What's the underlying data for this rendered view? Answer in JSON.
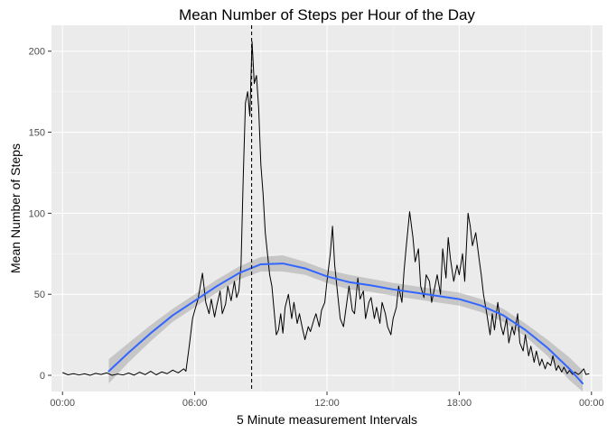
{
  "chart_data": {
    "type": "line",
    "title": "Mean Number of Steps per Hour of the Day",
    "xlabel": "5 Minute measurement Intervals",
    "ylabel": "Mean Number of Steps",
    "xlim_hours": [
      -0.5,
      24.5
    ],
    "ylim": [
      -10,
      216
    ],
    "x_ticks": [
      {
        "value": 0,
        "label": "00:00"
      },
      {
        "value": 6,
        "label": "06:00"
      },
      {
        "value": 12,
        "label": "12:00"
      },
      {
        "value": 18,
        "label": "18:00"
      },
      {
        "value": 24,
        "label": "00:00"
      }
    ],
    "y_ticks": [
      {
        "value": 0,
        "label": "0"
      },
      {
        "value": 50,
        "label": "50"
      },
      {
        "value": 100,
        "label": "100"
      },
      {
        "value": 150,
        "label": "150"
      },
      {
        "value": 200,
        "label": "200"
      }
    ],
    "grid": true,
    "vline": {
      "x": 8.58,
      "style": "dashed"
    },
    "series": [
      {
        "style": "line",
        "color": "#000000",
        "points": [
          [
            0,
            1.7
          ],
          [
            0.25,
            0.3
          ],
          [
            0.5,
            1.0
          ],
          [
            0.75,
            0.2
          ],
          [
            1,
            0.9
          ],
          [
            1.25,
            0.0
          ],
          [
            1.5,
            1.2
          ],
          [
            1.75,
            0.5
          ],
          [
            2,
            1.5
          ],
          [
            2.25,
            0.0
          ],
          [
            2.5,
            0.8
          ],
          [
            2.75,
            0.2
          ],
          [
            3,
            1.4
          ],
          [
            3.25,
            0.1
          ],
          [
            3.5,
            1.9
          ],
          [
            3.75,
            0.4
          ],
          [
            4,
            2.5
          ],
          [
            4.25,
            0.3
          ],
          [
            4.5,
            2.1
          ],
          [
            4.75,
            1.0
          ],
          [
            5,
            3.2
          ],
          [
            5.25,
            1.5
          ],
          [
            5.5,
            4.0
          ],
          [
            5.6,
            2.5
          ],
          [
            5.75,
            18
          ],
          [
            5.9,
            35
          ],
          [
            6,
            40
          ],
          [
            6.15,
            47
          ],
          [
            6.25,
            55
          ],
          [
            6.35,
            63
          ],
          [
            6.5,
            45
          ],
          [
            6.65,
            38
          ],
          [
            6.75,
            47
          ],
          [
            6.9,
            36
          ],
          [
            7,
            43
          ],
          [
            7.15,
            52
          ],
          [
            7.25,
            38
          ],
          [
            7.4,
            44
          ],
          [
            7.5,
            55
          ],
          [
            7.65,
            46
          ],
          [
            7.8,
            58
          ],
          [
            7.9,
            48
          ],
          [
            8,
            52
          ],
          [
            8.1,
            68
          ],
          [
            8.2,
            122
          ],
          [
            8.3,
            168
          ],
          [
            8.4,
            175
          ],
          [
            8.5,
            160
          ],
          [
            8.6,
            206
          ],
          [
            8.7,
            180
          ],
          [
            8.8,
            185
          ],
          [
            8.9,
            165
          ],
          [
            9.0,
            130
          ],
          [
            9.1,
            112
          ],
          [
            9.2,
            88
          ],
          [
            9.3,
            75
          ],
          [
            9.4,
            62
          ],
          [
            9.5,
            55
          ],
          [
            9.6,
            40
          ],
          [
            9.7,
            25
          ],
          [
            9.8,
            28
          ],
          [
            9.9,
            38
          ],
          [
            10.0,
            26
          ],
          [
            10.1,
            42
          ],
          [
            10.25,
            50
          ],
          [
            10.4,
            35
          ],
          [
            10.5,
            45
          ],
          [
            10.65,
            32
          ],
          [
            10.75,
            38
          ],
          [
            10.9,
            28
          ],
          [
            11,
            22
          ],
          [
            11.15,
            30
          ],
          [
            11.25,
            27
          ],
          [
            11.4,
            34
          ],
          [
            11.5,
            38
          ],
          [
            11.65,
            30
          ],
          [
            11.75,
            40
          ],
          [
            11.9,
            45
          ],
          [
            12,
            58
          ],
          [
            12.15,
            75
          ],
          [
            12.25,
            92
          ],
          [
            12.35,
            68
          ],
          [
            12.5,
            48
          ],
          [
            12.6,
            35
          ],
          [
            12.75,
            30
          ],
          [
            12.9,
            45
          ],
          [
            13,
            55
          ],
          [
            13.15,
            40
          ],
          [
            13.25,
            38
          ],
          [
            13.4,
            60
          ],
          [
            13.5,
            47
          ],
          [
            13.65,
            52
          ],
          [
            13.75,
            35
          ],
          [
            13.9,
            45
          ],
          [
            14,
            48
          ],
          [
            14.15,
            35
          ],
          [
            14.25,
            42
          ],
          [
            14.4,
            32
          ],
          [
            14.5,
            45
          ],
          [
            14.65,
            38
          ],
          [
            14.75,
            30
          ],
          [
            14.9,
            25
          ],
          [
            15,
            35
          ],
          [
            15.15,
            42
          ],
          [
            15.25,
            55
          ],
          [
            15.4,
            45
          ],
          [
            15.5,
            65
          ],
          [
            15.6,
            80
          ],
          [
            15.75,
            101
          ],
          [
            15.9,
            85
          ],
          [
            16,
            70
          ],
          [
            16.15,
            78
          ],
          [
            16.25,
            55
          ],
          [
            16.4,
            48
          ],
          [
            16.5,
            62
          ],
          [
            16.65,
            58
          ],
          [
            16.75,
            45
          ],
          [
            16.9,
            55
          ],
          [
            17,
            62
          ],
          [
            17.15,
            50
          ],
          [
            17.25,
            78
          ],
          [
            17.4,
            60
          ],
          [
            17.5,
            85
          ],
          [
            17.6,
            72
          ],
          [
            17.75,
            58
          ],
          [
            17.9,
            68
          ],
          [
            18,
            62
          ],
          [
            18.15,
            75
          ],
          [
            18.25,
            58
          ],
          [
            18.4,
            100
          ],
          [
            18.5,
            92
          ],
          [
            18.6,
            80
          ],
          [
            18.75,
            88
          ],
          [
            18.9,
            72
          ],
          [
            19,
            62
          ],
          [
            19.1,
            50
          ],
          [
            19.25,
            38
          ],
          [
            19.4,
            25
          ],
          [
            19.5,
            38
          ],
          [
            19.6,
            28
          ],
          [
            19.75,
            45
          ],
          [
            19.9,
            30
          ],
          [
            20,
            25
          ],
          [
            20.15,
            35
          ],
          [
            20.25,
            20
          ],
          [
            20.4,
            30
          ],
          [
            20.5,
            25
          ],
          [
            20.65,
            38
          ],
          [
            20.75,
            20
          ],
          [
            20.9,
            15
          ],
          [
            21,
            25
          ],
          [
            21.15,
            12
          ],
          [
            21.25,
            18
          ],
          [
            21.4,
            8
          ],
          [
            21.5,
            15
          ],
          [
            21.65,
            6
          ],
          [
            21.75,
            10
          ],
          [
            21.9,
            4
          ],
          [
            22,
            8
          ],
          [
            22.15,
            6
          ],
          [
            22.25,
            12
          ],
          [
            22.4,
            3
          ],
          [
            22.5,
            6
          ],
          [
            22.65,
            2
          ],
          [
            22.75,
            5
          ],
          [
            22.9,
            1
          ],
          [
            23,
            3
          ],
          [
            23.15,
            0.5
          ],
          [
            23.25,
            2
          ],
          [
            23.4,
            0.5
          ],
          [
            23.5,
            1.5
          ],
          [
            23.65,
            4
          ],
          [
            23.75,
            0.5
          ],
          [
            23.9,
            1
          ]
        ]
      },
      {
        "style": "smooth",
        "color": "#3366FF",
        "band_color": "#999999",
        "points": [
          [
            2.1,
            2.5,
            -5,
            10
          ],
          [
            3,
            14,
            8,
            20
          ],
          [
            4,
            26,
            21,
            31
          ],
          [
            5,
            37,
            33,
            41
          ],
          [
            6,
            46,
            42,
            50
          ],
          [
            7,
            55,
            51,
            59
          ],
          [
            8,
            63,
            59,
            67
          ],
          [
            9,
            68.5,
            64,
            73
          ],
          [
            10,
            69,
            64,
            74
          ],
          [
            11,
            66,
            62,
            70
          ],
          [
            12,
            61,
            57,
            65
          ],
          [
            13,
            57.5,
            53,
            62
          ],
          [
            14,
            55.5,
            51.5,
            59.5
          ],
          [
            15,
            53,
            49,
            57
          ],
          [
            16,
            51,
            47,
            55
          ],
          [
            17,
            49,
            45,
            53
          ],
          [
            18,
            47,
            43,
            51
          ],
          [
            19,
            43,
            39,
            47
          ],
          [
            20,
            37,
            33,
            41
          ],
          [
            21,
            28,
            24,
            32
          ],
          [
            22,
            17,
            12,
            22
          ],
          [
            23,
            4,
            -3,
            11
          ],
          [
            23.6,
            -5,
            -13,
            3
          ]
        ]
      }
    ]
  }
}
